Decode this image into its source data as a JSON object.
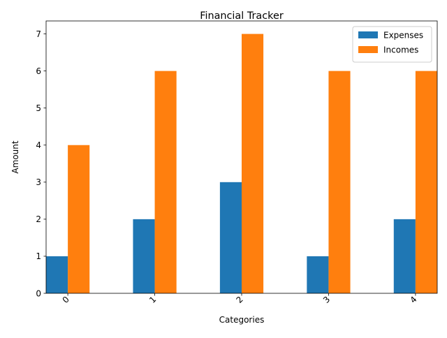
{
  "chart_data": {
    "type": "bar",
    "title": "Financial Tracker",
    "xlabel": "Categories",
    "ylabel": "Amount",
    "categories": [
      "0",
      "1",
      "2",
      "3",
      "4"
    ],
    "series": [
      {
        "name": "Expenses",
        "values": [
          1,
          2,
          3,
          1,
          2
        ],
        "color": "#1f77b4"
      },
      {
        "name": "Incomes",
        "values": [
          4,
          6,
          7,
          6,
          6
        ],
        "color": "#ff7f0e"
      }
    ],
    "ylim": [
      0,
      7.35
    ],
    "yticks": [
      0,
      1,
      2,
      3,
      4,
      5,
      6,
      7
    ],
    "xtick_rotation": 45,
    "legend_position": "top-right",
    "grid": false
  }
}
